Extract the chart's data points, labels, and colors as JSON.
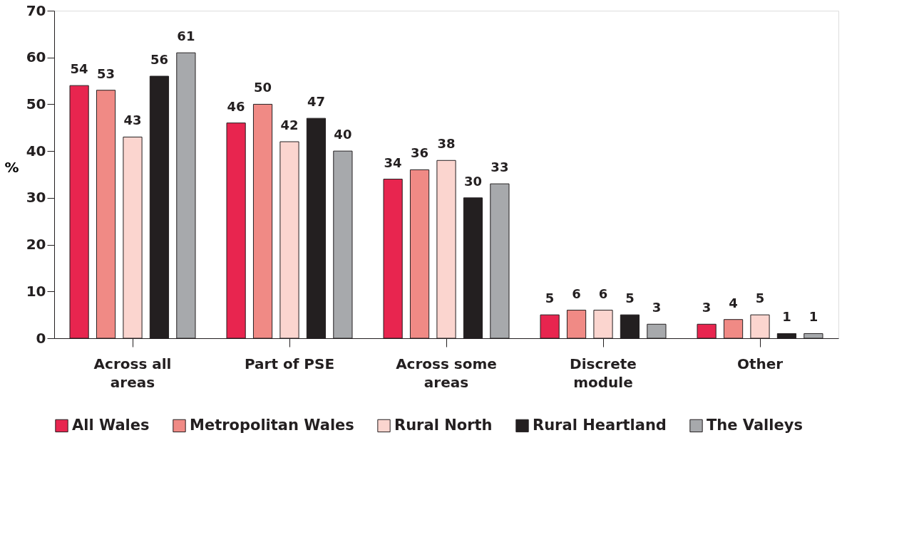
{
  "chart_data": {
    "type": "bar",
    "ylabel": "%",
    "categories": [
      "Across all areas",
      "Part of PSE",
      "Across some areas",
      "Discrete module",
      "Other"
    ],
    "series": [
      {
        "name": "All Wales",
        "color": "#e8254f",
        "values": [
          54,
          46,
          34,
          5,
          3
        ]
      },
      {
        "name": "Metropolitan Wales",
        "color": "#f08a85",
        "values": [
          53,
          50,
          36,
          6,
          4
        ]
      },
      {
        "name": "Rural North",
        "color": "#fbd5cf",
        "values": [
          43,
          42,
          38,
          6,
          5
        ]
      },
      {
        "name": "Rural Heartland",
        "color": "#231f20",
        "values": [
          56,
          47,
          30,
          5,
          1
        ]
      },
      {
        "name": "The Valleys",
        "color": "#a7a9ac",
        "values": [
          61,
          40,
          33,
          3,
          1
        ]
      }
    ],
    "ylim": [
      0,
      70
    ],
    "yticks": [
      0,
      10,
      20,
      30,
      40,
      50,
      60,
      70
    ],
    "data_labels": true,
    "grid": false,
    "legend": "bottom"
  }
}
